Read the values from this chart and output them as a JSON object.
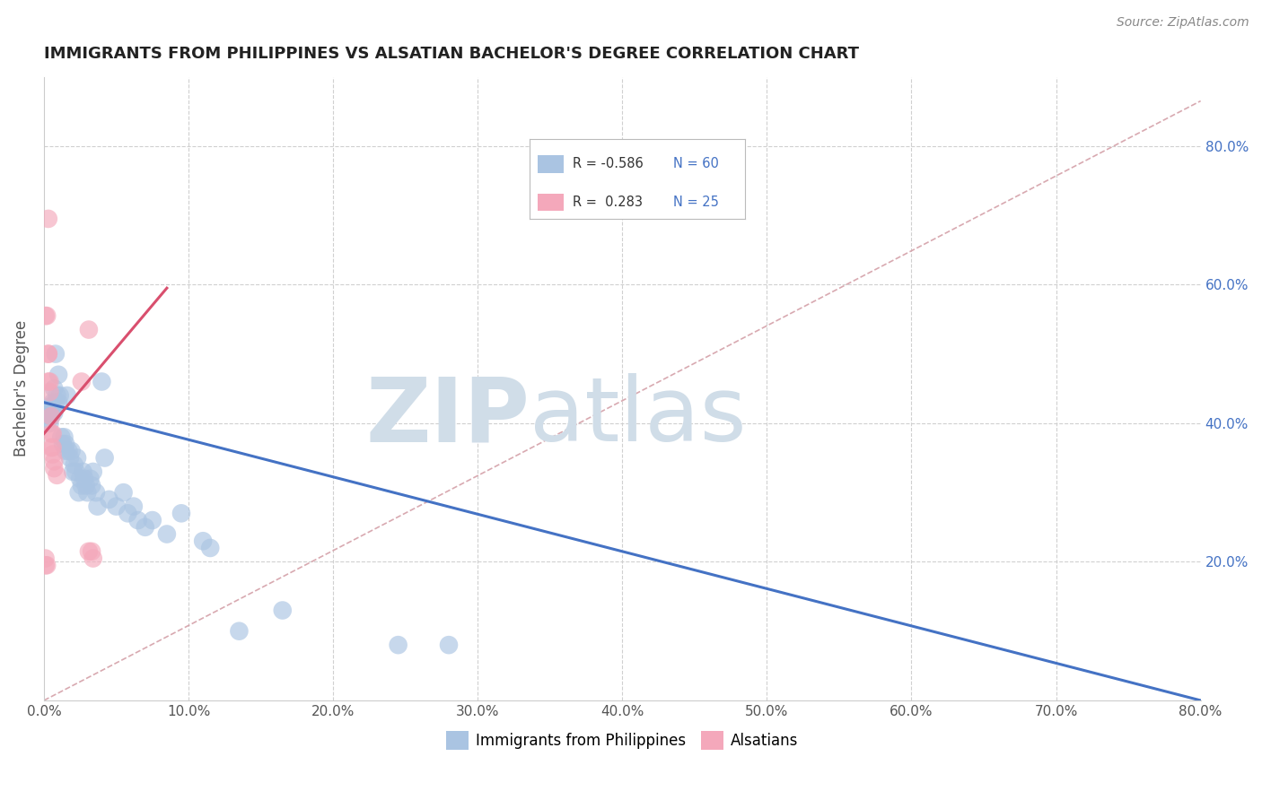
{
  "title": "IMMIGRANTS FROM PHILIPPINES VS ALSATIAN BACHELOR'S DEGREE CORRELATION CHART",
  "source": "Source: ZipAtlas.com",
  "ylabel": "Bachelor's Degree",
  "legend1_label": "Immigrants from Philippines",
  "legend2_label": "Alsatians",
  "R1": "-0.586",
  "N1": "60",
  "R2": "0.283",
  "N2": "25",
  "blue_color": "#aac4e2",
  "pink_color": "#f4a8bb",
  "blue_line_color": "#4472c4",
  "pink_line_color": "#d94f6e",
  "dash_line_color": "#d4a0a8",
  "x_range": [
    0.0,
    0.8
  ],
  "y_range": [
    0.0,
    0.9
  ],
  "x_tick_vals": [
    0.0,
    0.1,
    0.2,
    0.3,
    0.4,
    0.5,
    0.6,
    0.7,
    0.8
  ],
  "x_tick_labels": [
    "0.0%",
    "10.0%",
    "20.0%",
    "30.0%",
    "40.0%",
    "50.0%",
    "60.0%",
    "70.0%",
    "80.0%"
  ],
  "y_tick_vals": [
    0.2,
    0.4,
    0.6,
    0.8
  ],
  "y_tick_labels": [
    "20.0%",
    "40.0%",
    "60.0%",
    "80.0%"
  ],
  "blue_line_x": [
    0.0,
    0.8
  ],
  "blue_line_y": [
    0.43,
    0.0
  ],
  "pink_line_x": [
    0.0,
    0.085
  ],
  "pink_line_y": [
    0.385,
    0.595
  ],
  "dash_line_x": [
    0.0,
    0.8
  ],
  "dash_line_y": [
    0.0,
    0.865
  ],
  "blue_scatter": [
    [
      0.002,
      0.415
    ],
    [
      0.003,
      0.415
    ],
    [
      0.003,
      0.405
    ],
    [
      0.004,
      0.42
    ],
    [
      0.004,
      0.4
    ],
    [
      0.005,
      0.425
    ],
    [
      0.005,
      0.41
    ],
    [
      0.006,
      0.415
    ],
    [
      0.006,
      0.43
    ],
    [
      0.007,
      0.45
    ],
    [
      0.007,
      0.415
    ],
    [
      0.008,
      0.5
    ],
    [
      0.008,
      0.43
    ],
    [
      0.009,
      0.44
    ],
    [
      0.01,
      0.47
    ],
    [
      0.01,
      0.43
    ],
    [
      0.011,
      0.44
    ],
    [
      0.012,
      0.38
    ],
    [
      0.013,
      0.37
    ],
    [
      0.014,
      0.38
    ],
    [
      0.015,
      0.37
    ],
    [
      0.015,
      0.36
    ],
    [
      0.016,
      0.44
    ],
    [
      0.017,
      0.36
    ],
    [
      0.018,
      0.35
    ],
    [
      0.019,
      0.36
    ],
    [
      0.02,
      0.33
    ],
    [
      0.021,
      0.34
    ],
    [
      0.022,
      0.33
    ],
    [
      0.023,
      0.35
    ],
    [
      0.024,
      0.3
    ],
    [
      0.025,
      0.32
    ],
    [
      0.026,
      0.31
    ],
    [
      0.027,
      0.33
    ],
    [
      0.028,
      0.32
    ],
    [
      0.029,
      0.31
    ],
    [
      0.03,
      0.3
    ],
    [
      0.032,
      0.32
    ],
    [
      0.033,
      0.31
    ],
    [
      0.034,
      0.33
    ],
    [
      0.036,
      0.3
    ],
    [
      0.037,
      0.28
    ],
    [
      0.04,
      0.46
    ],
    [
      0.042,
      0.35
    ],
    [
      0.045,
      0.29
    ],
    [
      0.05,
      0.28
    ],
    [
      0.055,
      0.3
    ],
    [
      0.058,
      0.27
    ],
    [
      0.062,
      0.28
    ],
    [
      0.065,
      0.26
    ],
    [
      0.07,
      0.25
    ],
    [
      0.075,
      0.26
    ],
    [
      0.085,
      0.24
    ],
    [
      0.095,
      0.27
    ],
    [
      0.11,
      0.23
    ],
    [
      0.115,
      0.22
    ],
    [
      0.135,
      0.1
    ],
    [
      0.165,
      0.13
    ],
    [
      0.245,
      0.08
    ],
    [
      0.28,
      0.08
    ]
  ],
  "pink_scatter": [
    [
      0.001,
      0.555
    ],
    [
      0.002,
      0.555
    ],
    [
      0.003,
      0.5
    ],
    [
      0.003,
      0.5
    ],
    [
      0.003,
      0.46
    ],
    [
      0.004,
      0.46
    ],
    [
      0.004,
      0.445
    ],
    [
      0.005,
      0.41
    ],
    [
      0.005,
      0.385
    ],
    [
      0.005,
      0.365
    ],
    [
      0.006,
      0.385
    ],
    [
      0.006,
      0.365
    ],
    [
      0.006,
      0.355
    ],
    [
      0.007,
      0.345
    ],
    [
      0.007,
      0.335
    ],
    [
      0.009,
      0.325
    ],
    [
      0.026,
      0.46
    ],
    [
      0.031,
      0.535
    ],
    [
      0.031,
      0.215
    ],
    [
      0.033,
      0.215
    ],
    [
      0.034,
      0.205
    ],
    [
      0.003,
      0.695
    ],
    [
      0.001,
      0.205
    ],
    [
      0.001,
      0.195
    ],
    [
      0.002,
      0.195
    ]
  ],
  "watermark_zip": "ZIP",
  "watermark_atlas": "atlas",
  "background_color": "#ffffff",
  "grid_color": "#d0d0d0"
}
